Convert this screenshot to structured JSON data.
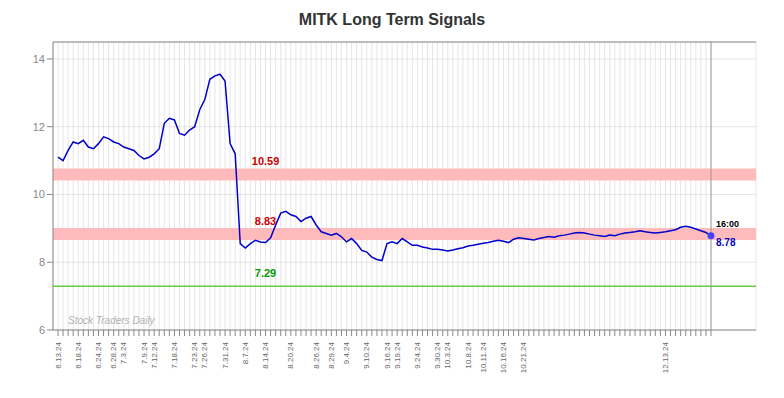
{
  "chart_data": {
    "type": "line",
    "title": "MITK Long Term Signals",
    "categories": [
      "6.13.24",
      null,
      null,
      null,
      "6.18.24",
      null,
      null,
      null,
      "6.24.24",
      null,
      null,
      "6.28.24",
      null,
      "7.3.24",
      null,
      null,
      null,
      "7.9.24",
      null,
      "7.12.24",
      null,
      null,
      null,
      "7.18.24",
      null,
      null,
      null,
      "7.23.24",
      null,
      "7.26.24",
      null,
      null,
      null,
      "7.31.24",
      null,
      null,
      null,
      "8.7.24",
      null,
      null,
      null,
      "8.14.24",
      null,
      null,
      null,
      null,
      "8.20.24",
      null,
      null,
      null,
      null,
      "8.26.24",
      null,
      null,
      "8.29.24",
      null,
      null,
      "9.4.24",
      null,
      null,
      null,
      "9.10.24",
      null,
      null,
      null,
      "9.16.24",
      null,
      "9.19.24",
      null,
      null,
      null,
      "9.24.24",
      null,
      null,
      null,
      "9.30.24",
      null,
      "10.3.24",
      null,
      null,
      null,
      "10.8.24",
      null,
      null,
      "10.11.24",
      null,
      null,
      null,
      "10.16.24",
      null,
      null,
      null,
      "10.21.24",
      null,
      null,
      null,
      null,
      null,
      null,
      null,
      null,
      null,
      null,
      null,
      null,
      null,
      null,
      null,
      null,
      null,
      null,
      null,
      null,
      null,
      null,
      null,
      null,
      null,
      null,
      null,
      "12.13.24",
      null,
      null,
      null,
      null,
      null,
      null,
      null,
      null,
      null
    ],
    "values": [
      11.1,
      11.0,
      11.3,
      11.55,
      11.5,
      11.6,
      11.4,
      11.35,
      11.5,
      11.7,
      11.65,
      11.55,
      11.5,
      11.4,
      11.35,
      11.3,
      11.15,
      11.05,
      11.1,
      11.2,
      11.35,
      12.1,
      12.25,
      12.2,
      11.8,
      11.75,
      11.9,
      12.0,
      12.5,
      12.8,
      13.4,
      13.5,
      13.55,
      13.35,
      11.5,
      11.2,
      8.55,
      8.42,
      8.55,
      8.65,
      8.6,
      8.58,
      8.72,
      9.1,
      9.45,
      9.5,
      9.4,
      9.35,
      9.2,
      9.3,
      9.35,
      9.1,
      8.9,
      8.85,
      8.8,
      8.85,
      8.75,
      8.6,
      8.7,
      8.55,
      8.35,
      8.3,
      8.15,
      8.08,
      8.05,
      8.55,
      8.6,
      8.55,
      8.7,
      8.6,
      8.5,
      8.5,
      8.45,
      8.42,
      8.38,
      8.38,
      8.36,
      8.33,
      8.36,
      8.4,
      8.43,
      8.48,
      8.5,
      8.53,
      8.56,
      8.58,
      8.62,
      8.65,
      8.62,
      8.58,
      8.68,
      8.72,
      8.7,
      8.68,
      8.66,
      8.7,
      8.73,
      8.76,
      8.74,
      8.78,
      8.8,
      8.83,
      8.86,
      8.88,
      8.86,
      8.83,
      8.8,
      8.78,
      8.76,
      8.8,
      8.78,
      8.83,
      8.86,
      8.88,
      8.9,
      8.93,
      8.9,
      8.88,
      8.86,
      8.88,
      8.9,
      8.93,
      8.96,
      9.03,
      9.06,
      9.03,
      8.98,
      8.93,
      8.88,
      8.78
    ],
    "color": "#0000cc",
    "end_dot_color": "#4444ff",
    "ylim": [
      6,
      14.5
    ],
    "yticks": [
      6,
      8,
      10,
      12,
      14
    ],
    "grid": true,
    "hlines": [
      {
        "value": 10.59,
        "label": "10.59",
        "color": "#ffbbbb",
        "label_color": "#cc0000",
        "line_style": "band"
      },
      {
        "value": 8.83,
        "label": "8.83",
        "color": "#ffbbbb",
        "label_color": "#cc0000",
        "line_style": "band"
      },
      {
        "value": 7.29,
        "label": "7.29",
        "color": "#66cc44",
        "label_color": "#009900",
        "line_style": "solid"
      }
    ],
    "annotations": [
      {
        "text": "16:00",
        "color": "#000000"
      },
      {
        "text": "8.78",
        "color": "#0000cc"
      }
    ],
    "watermark": {
      "text": "Stock Traders Daily",
      "color": "#b0b0b0"
    }
  }
}
